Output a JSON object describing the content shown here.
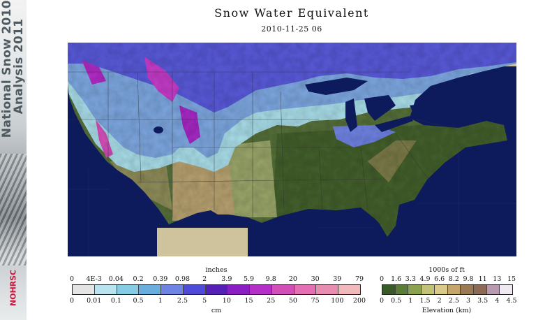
{
  "banner": {
    "line1": "National Snow 2010-",
    "line2": "Analysis 2011",
    "logo": "NOHRSC"
  },
  "map": {
    "title": "Snow Water Equivalent",
    "datetime": "2010-11-25 06"
  },
  "swe_legend": {
    "unit_top": "inches",
    "unit_bottom": "cm",
    "inch_ticks": [
      "0",
      "4E-3",
      "0.04",
      "0.2",
      "0.39",
      "0.98",
      "2",
      "3.9",
      "5.9",
      "9.8",
      "20",
      "30",
      "39",
      "79"
    ],
    "cm_ticks": [
      "0",
      "0.01",
      "0.1",
      "0.5",
      "1",
      "2.5",
      "5",
      "10",
      "15",
      "25",
      "50",
      "75",
      "100",
      "200"
    ],
    "colors": [
      "#e4e4e4",
      "#b9e3ef",
      "#86cde3",
      "#6aaede",
      "#6f83e2",
      "#4f4ad8",
      "#5520b5",
      "#8a1ec2",
      "#b42fc8",
      "#d24fb8",
      "#e46fb3",
      "#e88db0",
      "#f1b9bb"
    ]
  },
  "elevation_legend": {
    "unit_top": "1000s of ft",
    "unit_bottom": "Elevation (km)",
    "ft_ticks": [
      "0",
      "1.6",
      "3.3",
      "4.9",
      "6.6",
      "8.2",
      "9.8",
      "11",
      "13",
      "15"
    ],
    "km_ticks": [
      "0",
      "0.5",
      "1",
      "1.5",
      "2",
      "2.5",
      "3",
      "3.5",
      "4",
      "4.5"
    ],
    "colors": [
      "#3a5a2a",
      "#5c7c3a",
      "#8ba250",
      "#c3c078",
      "#d9c98b",
      "#c6a56a",
      "#9a7a52",
      "#8b6a56",
      "#b89ab0",
      "#efe9f2"
    ]
  }
}
